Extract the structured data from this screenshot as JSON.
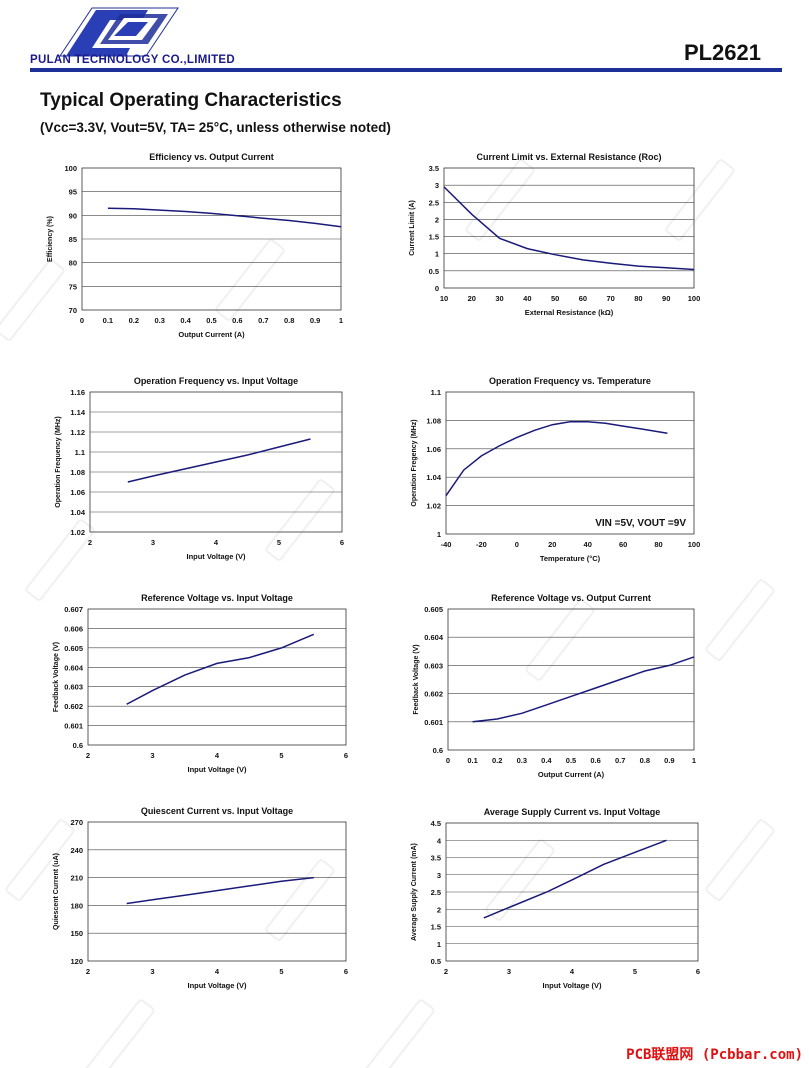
{
  "header": {
    "company": "PULAN TECHNOLOGY CO.,LIMITED",
    "part_number": "PL2621",
    "brand_color": "#1f2f9a"
  },
  "section": {
    "title": "Typical Operating Characteristics",
    "conditions": "(Vcc=3.3V, Vout=5V, TA= 25°C, unless otherwise noted)"
  },
  "footer": {
    "text": "PCB联盟网 (Pcbbar.com)"
  },
  "chart_data": [
    {
      "type": "line",
      "title": "Efficiency  vs. Output Current",
      "xlabel": "Output Current (A)",
      "ylabel": "Efficiency (%)",
      "xlim": [
        0,
        1
      ],
      "ylim": [
        70,
        100
      ],
      "xticks": [
        "0",
        "0.1",
        "0.2",
        "0.3",
        "0.4",
        "0.5",
        "0.6",
        "0.7",
        "0.8",
        "0.9",
        "1"
      ],
      "yticks": [
        "70",
        "75",
        "80",
        "85",
        "90",
        "95",
        "100"
      ],
      "x": [
        0.1,
        0.2,
        0.3,
        0.4,
        0.5,
        0.6,
        0.7,
        0.8,
        0.9,
        1.0
      ],
      "y": [
        91.5,
        91.4,
        91.1,
        90.8,
        90.4,
        89.9,
        89.4,
        88.9,
        88.3,
        87.6
      ],
      "grid": true,
      "line_color": "#1a1a7a"
    },
    {
      "type": "line",
      "title": "Current Limit  vs. External Resistance (Roc)",
      "xlabel": "External Resistance (kΩ)",
      "ylabel": "Current Limit (A)",
      "xlim": [
        10,
        100
      ],
      "ylim": [
        0,
        3.5
      ],
      "xticks": [
        "10",
        "20",
        "30",
        "40",
        "50",
        "60",
        "70",
        "80",
        "90",
        "100"
      ],
      "yticks": [
        "0",
        "0.5",
        "1",
        "1.5",
        "2",
        "2.5",
        "3",
        "3.5"
      ],
      "x": [
        10,
        20,
        30,
        40,
        50,
        60,
        70,
        80,
        90,
        100
      ],
      "y": [
        2.95,
        2.15,
        1.45,
        1.15,
        0.97,
        0.82,
        0.72,
        0.64,
        0.59,
        0.54
      ],
      "grid": true,
      "line_color": "#1a1a7a"
    },
    {
      "type": "line",
      "title": "Operation Frequency vs. Input Voltage",
      "xlabel": "Input Voltage (V)",
      "ylabel": "Operation Frequency (MHz)",
      "xlim": [
        2,
        6
      ],
      "ylim": [
        1.02,
        1.16
      ],
      "xticks": [
        "2",
        "3",
        "4",
        "5",
        "6"
      ],
      "yticks": [
        "1.02",
        "1.04",
        "1.06",
        "1.08",
        "1.1",
        "1.12",
        "1.14",
        "1.16"
      ],
      "x": [
        2.6,
        3.0,
        3.5,
        4.0,
        4.5,
        5.0,
        5.5
      ],
      "y": [
        1.07,
        1.076,
        1.083,
        1.09,
        1.097,
        1.105,
        1.113
      ],
      "grid": true,
      "line_color": "#1a1a7a"
    },
    {
      "type": "line",
      "title": "Operation Frequency  vs. Temperature",
      "xlabel": "Temperature (°C)",
      "ylabel": "Operation Fregency (MHz)",
      "xlim": [
        -40,
        100
      ],
      "ylim": [
        1,
        1.1
      ],
      "xticks": [
        "-40",
        "-20",
        "0",
        "20",
        "40",
        "60",
        "80",
        "100"
      ],
      "yticks": [
        "1",
        "1.02",
        "1.04",
        "1.06",
        "1.08",
        "1.1"
      ],
      "x": [
        -40,
        -30,
        -20,
        -10,
        0,
        10,
        20,
        30,
        40,
        50,
        60,
        70,
        85
      ],
      "y": [
        1.027,
        1.045,
        1.055,
        1.062,
        1.068,
        1.073,
        1.077,
        1.079,
        1.079,
        1.078,
        1.076,
        1.074,
        1.071
      ],
      "annotation": "VIN =5V, VOUT =9V",
      "grid": true,
      "line_color": "#1a1a7a"
    },
    {
      "type": "line",
      "title": "Reference Voltage  vs. Input Voltage",
      "xlabel": "Input Voltage (V)",
      "ylabel": "Feedback Voltage (V)",
      "xlim": [
        2,
        6
      ],
      "ylim": [
        0.6,
        0.607
      ],
      "xticks": [
        "2",
        "3",
        "4",
        "5",
        "6"
      ],
      "yticks": [
        "0.6",
        "0.601",
        "0.602",
        "0.603",
        "0.604",
        "0.605",
        "0.606",
        "0.607"
      ],
      "x": [
        2.6,
        3.0,
        3.5,
        4.0,
        4.5,
        5.0,
        5.5
      ],
      "y": [
        0.6021,
        0.6028,
        0.6036,
        0.6042,
        0.6045,
        0.605,
        0.6057
      ],
      "grid": true,
      "line_color": "#1a1a7a"
    },
    {
      "type": "line",
      "title": "Reference Voltage  vs. Output Current",
      "xlabel": "Output Current (A)",
      "ylabel": "Feedback Voltage (V)",
      "xlim": [
        0,
        1
      ],
      "ylim": [
        0.6,
        0.605
      ],
      "xticks": [
        "0",
        "0.1",
        "0.2",
        "0.3",
        "0.4",
        "0.5",
        "0.6",
        "0.7",
        "0.8",
        "0.9",
        "1"
      ],
      "yticks": [
        "0.6",
        "0.601",
        "0.602",
        "0.603",
        "0.604",
        "0.605"
      ],
      "x": [
        0.1,
        0.2,
        0.3,
        0.4,
        0.5,
        0.6,
        0.7,
        0.8,
        0.9,
        1.0
      ],
      "y": [
        0.601,
        0.6011,
        0.6013,
        0.6016,
        0.6019,
        0.6022,
        0.6025,
        0.6028,
        0.603,
        0.6033
      ],
      "grid": true,
      "line_color": "#1a1a7a"
    },
    {
      "type": "line",
      "title": "Quiescent  Current  vs.  Input Voltage",
      "xlabel": "Input Voltage (V)",
      "ylabel": "Quiescent Current (uA)",
      "xlim": [
        2,
        6
      ],
      "ylim": [
        120,
        270
      ],
      "xticks": [
        "2",
        "3",
        "4",
        "5",
        "6"
      ],
      "yticks": [
        "120",
        "150",
        "180",
        "210",
        "240",
        "270"
      ],
      "x": [
        2.6,
        3.0,
        3.5,
        4.0,
        4.5,
        5.0,
        5.5
      ],
      "y": [
        182,
        186,
        191,
        196,
        201,
        206,
        210
      ],
      "grid": true,
      "line_color": "#1a1a7a"
    },
    {
      "type": "line",
      "title": "Average Supply  Current  vs. Input  Voltage",
      "xlabel": "Input Voltage (V)",
      "ylabel": "Average Supply  Current (mA)",
      "xlim": [
        2,
        6
      ],
      "ylim": [
        0.5,
        4.5
      ],
      "xticks": [
        "2",
        "3",
        "4",
        "5",
        "6"
      ],
      "yticks": [
        "0.5",
        "1",
        "1.5",
        "2",
        "2.5",
        "3",
        "3.5",
        "4",
        "4.5"
      ],
      "x": [
        2.6,
        3.0,
        3.6,
        4.0,
        4.5,
        5.0,
        5.5
      ],
      "y": [
        1.75,
        2.05,
        2.5,
        2.85,
        3.3,
        3.65,
        4.0
      ],
      "grid": true,
      "line_color": "#1a1a7a"
    }
  ]
}
